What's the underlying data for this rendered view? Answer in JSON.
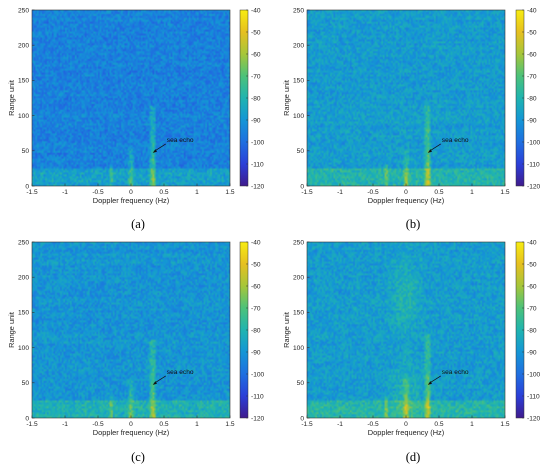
{
  "chart_data": [
    {
      "type": "heatmap",
      "panel_label": "(a)",
      "xlabel": "Doppler frequency (Hz)",
      "ylabel": "Range unit",
      "xlim": [
        -1.5,
        1.5
      ],
      "ylim": [
        0,
        250
      ],
      "x_ticks": [
        "-1.5",
        "-1",
        "-0.5",
        "0",
        "0.5",
        "1",
        "1.5"
      ],
      "y_ticks": [
        "0",
        "50",
        "100",
        "150",
        "200",
        "250"
      ],
      "colorbar": {
        "range": [
          -120,
          -40
        ],
        "ticks": [
          "-40",
          "-50",
          "-60",
          "-70",
          "-80",
          "-90",
          "-100",
          "-110",
          "-120"
        ]
      },
      "annotation": {
        "text": "sea echo",
        "x": 0.33,
        "y": 47
      },
      "background_level_db": -95,
      "features": {
        "sea_echo_line": {
          "x": 0.33,
          "top": 115
        },
        "dc_line": {
          "x": 0.0,
          "top": 55
        },
        "central_haze": false
      }
    },
    {
      "type": "heatmap",
      "panel_label": "(b)",
      "xlabel": "Doppler frequency (Hz)",
      "ylabel": "Range unit",
      "xlim": [
        -1.5,
        1.5
      ],
      "ylim": [
        0,
        250
      ],
      "x_ticks": [
        "-1.5",
        "-1",
        "-0.5",
        "0",
        "0.5",
        "1",
        "1.5"
      ],
      "y_ticks": [
        "0",
        "50",
        "100",
        "150",
        "200",
        "250"
      ],
      "colorbar": {
        "range": [
          -120,
          -40
        ],
        "ticks": [
          "-40",
          "-50",
          "-60",
          "-70",
          "-80",
          "-90",
          "-100",
          "-110",
          "-120"
        ]
      },
      "annotation": {
        "text": "sea echo",
        "x": 0.33,
        "y": 47
      },
      "background_level_db": -88,
      "features": {
        "sea_echo_line": {
          "x": 0.33,
          "top": 115
        },
        "dc_line": {
          "x": 0.0,
          "top": 50
        },
        "central_haze": false
      }
    },
    {
      "type": "heatmap",
      "panel_label": "(c)",
      "xlabel": "Doppler frequency (Hz)",
      "ylabel": "Range unit",
      "xlim": [
        -1.5,
        1.5
      ],
      "ylim": [
        0,
        250
      ],
      "x_ticks": [
        "-1.5",
        "-1",
        "-0.5",
        "0",
        "0.5",
        "1",
        "1.5"
      ],
      "y_ticks": [
        "0",
        "50",
        "100",
        "150",
        "200",
        "250"
      ],
      "colorbar": {
        "range": [
          -120,
          -40
        ],
        "ticks": [
          "-40",
          "-50",
          "-60",
          "-70",
          "-80",
          "-90",
          "-100",
          "-110",
          "-120"
        ]
      },
      "annotation": {
        "text": "sea echo",
        "x": 0.33,
        "y": 47
      },
      "background_level_db": -90,
      "features": {
        "sea_echo_line": {
          "x": 0.33,
          "top": 110
        },
        "dc_line": {
          "x": 0.0,
          "top": 55
        },
        "central_haze": false
      }
    },
    {
      "type": "heatmap",
      "panel_label": "(d)",
      "xlabel": "Doppler frequency (Hz)",
      "ylabel": "Range unit",
      "xlim": [
        -1.5,
        1.5
      ],
      "ylim": [
        0,
        250
      ],
      "x_ticks": [
        "-1.5",
        "-1",
        "-0.5",
        "0",
        "0.5",
        "1",
        "1.5"
      ],
      "y_ticks": [
        "0",
        "50",
        "100",
        "150",
        "200",
        "250"
      ],
      "colorbar": {
        "range": [
          -120,
          -40
        ],
        "ticks": [
          "-40",
          "-50",
          "-60",
          "-70",
          "-80",
          "-90",
          "-100",
          "-110",
          "-120"
        ]
      },
      "annotation": {
        "text": "sea echo",
        "x": 0.33,
        "y": 47
      },
      "background_level_db": -88,
      "features": {
        "sea_echo_line": {
          "x": 0.33,
          "top": 120
        },
        "dc_line": {
          "x": 0.0,
          "top": 55
        },
        "central_haze": true
      }
    }
  ],
  "colormap": [
    "#3f1b8c",
    "#2b3fd8",
    "#1f6fe0",
    "#1496d6",
    "#1fb4b0",
    "#4cc27a",
    "#a6c63a",
    "#e6c020",
    "#f7ec12"
  ]
}
